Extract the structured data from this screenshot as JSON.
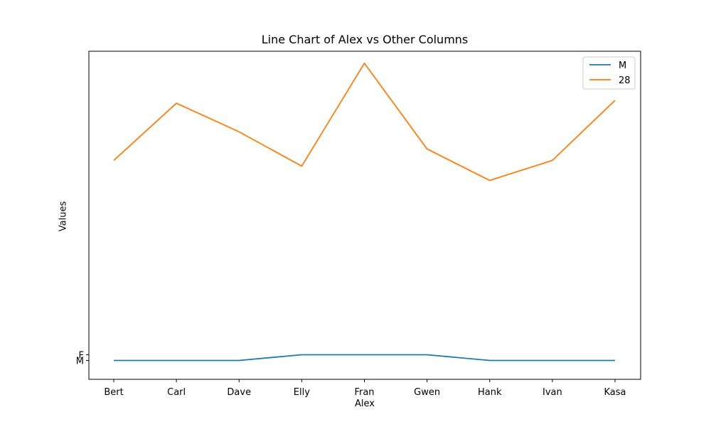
{
  "chart_data": {
    "type": "line",
    "title": "Line Chart of Alex vs Other Columns",
    "xlabel": "Alex",
    "ylabel": "Values",
    "categories": [
      "Bert",
      "Carl",
      "Dave",
      "Elly",
      "Fran",
      "Gwen",
      "Hank",
      "Ivan",
      "Kasa"
    ],
    "y_tick_labels": [
      "M",
      "F"
    ],
    "series": [
      {
        "name": "M",
        "color": "#1f77b4",
        "values": [
          "M",
          "M",
          "M",
          "F",
          "F",
          "F",
          "M",
          "M",
          "M"
        ]
      },
      {
        "name": "28",
        "color": "#ff7f0e",
        "values": [
          35,
          45,
          40,
          34,
          52,
          37,
          31.5,
          35,
          45.5
        ]
      }
    ],
    "legend_position": "upper right",
    "grid": false
  }
}
